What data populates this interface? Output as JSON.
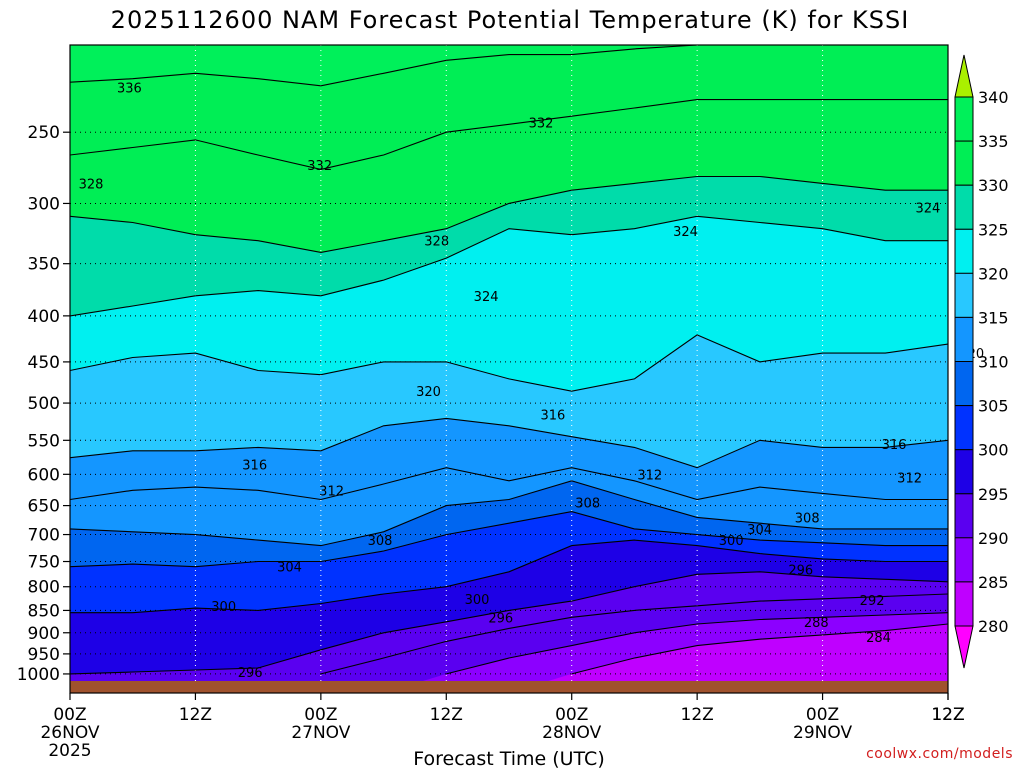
{
  "chart_data": {
    "type": "heatmap",
    "title": "2025112600 NAM Forecast Potential Temperature (K) for KSSI",
    "xlabel": "Forecast Time (UTC)",
    "ylabel": "",
    "credit": "coolwx.com/models",
    "y_scale": "log-pressure",
    "ylim": [
      200,
      1050
    ],
    "y_ticks": [
      250,
      300,
      350,
      400,
      450,
      500,
      550,
      600,
      650,
      700,
      750,
      800,
      850,
      900,
      950,
      1000
    ],
    "x_ticks": [
      {
        "hour": 0,
        "label": "00Z",
        "sub": "26NOV",
        "year": "2025"
      },
      {
        "hour": 12,
        "label": "12Z",
        "sub": "",
        "year": ""
      },
      {
        "hour": 24,
        "label": "00Z",
        "sub": "27NOV",
        "year": ""
      },
      {
        "hour": 36,
        "label": "12Z",
        "sub": "",
        "year": ""
      },
      {
        "hour": 48,
        "label": "00Z",
        "sub": "28NOV",
        "year": ""
      },
      {
        "hour": 60,
        "label": "12Z",
        "sub": "",
        "year": ""
      },
      {
        "hour": 72,
        "label": "00Z",
        "sub": "29NOV",
        "year": ""
      },
      {
        "hour": 84,
        "label": "12Z",
        "sub": "",
        "year": ""
      }
    ],
    "xlim": [
      0,
      84
    ],
    "grid": true,
    "colorbar": {
      "levels": [
        280,
        285,
        290,
        295,
        300,
        305,
        310,
        315,
        320,
        325,
        330,
        335,
        340
      ],
      "colors": [
        "#ff00ff",
        "#bf00ff",
        "#8c00ff",
        "#5a00f0",
        "#1e00e6",
        "#0032ff",
        "#0066f0",
        "#1496ff",
        "#28c8ff",
        "#00f0f0",
        "#00dcaa",
        "#00ee55",
        "#00f05a",
        "#aaf000"
      ]
    },
    "contour_levels": [
      284,
      288,
      292,
      296,
      300,
      304,
      308,
      312,
      316,
      320,
      324,
      328,
      332,
      336
    ],
    "isentrope_pressure_at_hours": {
      "hours": [
        0,
        6,
        12,
        18,
        24,
        30,
        36,
        42,
        48,
        54,
        60,
        66,
        72,
        78,
        84
      ],
      "theta_284": [
        null,
        null,
        null,
        null,
        null,
        null,
        null,
        null,
        1000,
        960,
        930,
        915,
        905,
        895,
        880
      ],
      "theta_288": [
        null,
        null,
        null,
        null,
        null,
        null,
        1000,
        960,
        930,
        900,
        880,
        870,
        865,
        860,
        855
      ],
      "theta_292": [
        null,
        null,
        null,
        null,
        1000,
        960,
        920,
        890,
        865,
        850,
        840,
        830,
        825,
        820,
        815
      ],
      "theta_296": [
        1000,
        995,
        990,
        985,
        940,
        900,
        875,
        850,
        830,
        800,
        775,
        770,
        780,
        785,
        790
      ],
      "theta_300": [
        855,
        855,
        845,
        850,
        835,
        815,
        800,
        770,
        720,
        710,
        720,
        735,
        745,
        750,
        750
      ],
      "theta_304": [
        760,
        755,
        760,
        750,
        750,
        730,
        700,
        680,
        660,
        690,
        700,
        710,
        715,
        720,
        720
      ],
      "theta_308": [
        690,
        695,
        700,
        710,
        720,
        695,
        650,
        640,
        610,
        640,
        670,
        680,
        690,
        690,
        690
      ],
      "theta_312": [
        640,
        625,
        620,
        625,
        640,
        615,
        590,
        610,
        590,
        610,
        640,
        620,
        630,
        640,
        640
      ],
      "theta_316": [
        575,
        565,
        565,
        560,
        565,
        530,
        520,
        530,
        545,
        560,
        590,
        550,
        560,
        560,
        550
      ],
      "theta_320": [
        460,
        445,
        440,
        460,
        465,
        450,
        450,
        470,
        485,
        470,
        420,
        450,
        440,
        440,
        430
      ],
      "theta_324": [
        400,
        390,
        380,
        375,
        380,
        365,
        345,
        320,
        325,
        320,
        310,
        315,
        320,
        330,
        330
      ],
      "theta_328": [
        310,
        315,
        325,
        330,
        340,
        330,
        320,
        300,
        290,
        285,
        280,
        280,
        285,
        290,
        290
      ],
      "theta_332": [
        265,
        260,
        255,
        265,
        275,
        265,
        250,
        245,
        240,
        235,
        230,
        230,
        230,
        230,
        230
      ],
      "theta_336": [
        220,
        218,
        215,
        218,
        222,
        215,
        208,
        205,
        205,
        202,
        200,
        200,
        200,
        200,
        200
      ]
    },
    "contour_labels": [
      {
        "text": "336",
        "hour": 6.5,
        "p": 223
      },
      {
        "text": "332",
        "hour": 27.3,
        "p": 272
      },
      {
        "text": "332",
        "hour": 51.5,
        "p": 244
      },
      {
        "text": "328",
        "hour": 2.3,
        "p": 285
      },
      {
        "text": "328",
        "hour": 40.1,
        "p": 330
      },
      {
        "text": "324",
        "hour": 45.5,
        "p": 380
      },
      {
        "text": "324",
        "hour": 67.3,
        "p": 322
      },
      {
        "text": "324",
        "hour": 93.8,
        "p": 303
      },
      {
        "text": "320",
        "hour": 39.2,
        "p": 485
      },
      {
        "text": "320",
        "hour": 98.6,
        "p": 440
      },
      {
        "text": "316",
        "hour": 20.2,
        "p": 585
      },
      {
        "text": "316",
        "hour": 52.8,
        "p": 515
      },
      {
        "text": "316",
        "hour": 90.1,
        "p": 555
      },
      {
        "text": "312",
        "hour": 28.6,
        "p": 625
      },
      {
        "text": "312",
        "hour": 63.4,
        "p": 600
      },
      {
        "text": "312",
        "hour": 91.8,
        "p": 605
      },
      {
        "text": "308",
        "hour": 33.9,
        "p": 710
      },
      {
        "text": "308",
        "hour": 56.6,
        "p": 645
      },
      {
        "text": "308",
        "hour": 80.6,
        "p": 670
      },
      {
        "text": "304",
        "hour": 24.0,
        "p": 760
      },
      {
        "text": "304",
        "hour": 75.4,
        "p": 690
      },
      {
        "text": "300",
        "hour": 16.8,
        "p": 840
      },
      {
        "text": "300",
        "hour": 44.5,
        "p": 825
      },
      {
        "text": "300",
        "hour": 72.3,
        "p": 710
      },
      {
        "text": "296",
        "hour": 19.7,
        "p": 995
      },
      {
        "text": "296",
        "hour": 47.1,
        "p": 865
      },
      {
        "text": "296",
        "hour": 79.9,
        "p": 765
      },
      {
        "text": "292",
        "hour": 87.7,
        "p": 828
      },
      {
        "text": "288",
        "hour": 81.6,
        "p": 875
      },
      {
        "text": "284",
        "hour": 88.4,
        "p": 910
      }
    ]
  }
}
